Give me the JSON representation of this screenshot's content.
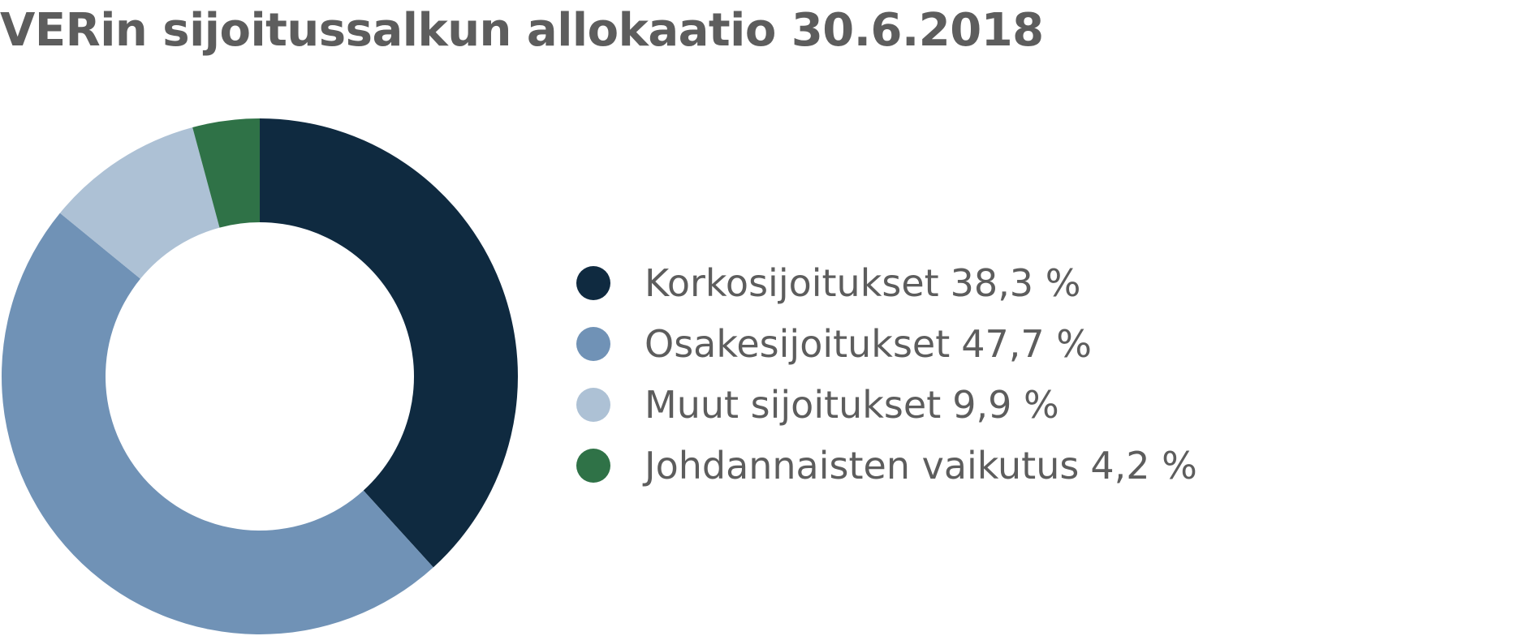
{
  "chart_data": {
    "type": "pie",
    "variant": "donut",
    "title": "VERin sijoitussalkun allokaatio 30.6.2018",
    "slices": [
      {
        "label": "Korkosijoitukset",
        "value": 38.3,
        "value_text": "38,3 %",
        "color": "#0f2a40"
      },
      {
        "label": "Osakesijoitukset",
        "value": 47.7,
        "value_text": "47,7 %",
        "color": "#7092b6"
      },
      {
        "label": "Muut sijoitukset",
        "value": 9.9,
        "value_text": "9,9 %",
        "color": "#adc1d5"
      },
      {
        "label": "Johdannaisten vaikutus",
        "value": 4.2,
        "value_text": "4,2 %",
        "color": "#2f7247"
      }
    ],
    "legend_position": "right",
    "start_angle": "top",
    "direction": "clockwise"
  }
}
